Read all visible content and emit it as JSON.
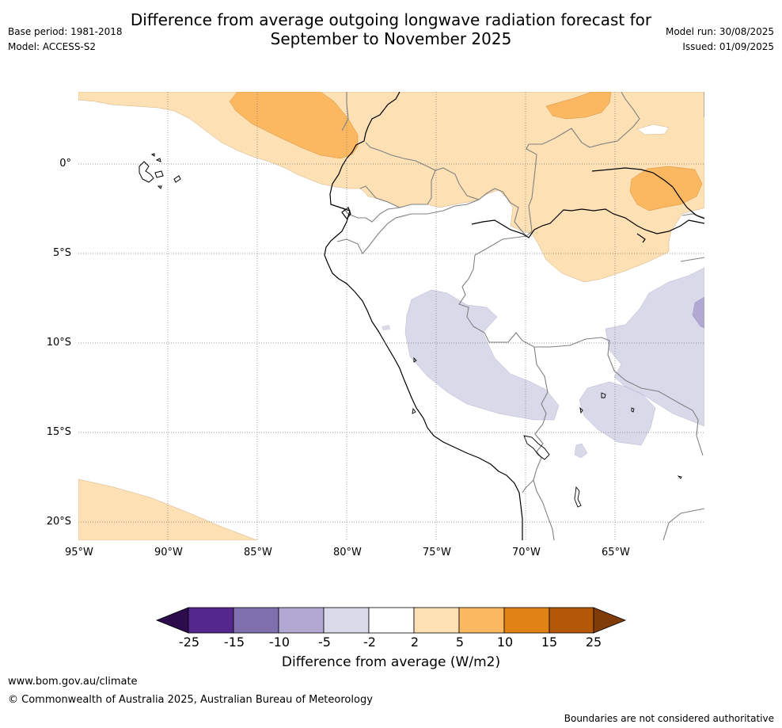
{
  "header": {
    "title_line1": "Difference from average outgoing longwave radiation forecast for",
    "title_line2": "September to November 2025",
    "base_period": "Base period: 1981-2018",
    "model": "Model: ACCESS-S2",
    "model_run": "Model run: 30/08/2025",
    "issued": "Issued: 01/09/2025"
  },
  "map": {
    "lon_labels": [
      "95°W",
      "90°W",
      "85°W",
      "80°W",
      "75°W",
      "70°W",
      "65°W"
    ],
    "lat_labels": [
      "0°",
      "5°S",
      "10°S",
      "15°S",
      "20°S"
    ],
    "lon_range": [
      -95,
      -60
    ],
    "lat_range": [
      -21,
      4
    ],
    "gridlines": "dotted"
  },
  "colorbar": {
    "title": "Difference from average (W/m2)",
    "tick_labels": [
      "-25",
      "-15",
      "-10",
      "-5",
      "-2",
      "2",
      "5",
      "10",
      "15",
      "25"
    ],
    "colors": [
      "#2d0c4e",
      "#54278f",
      "#7f70ad",
      "#b1a9d1",
      "#d9d9ea",
      "#ffffff",
      "#fde0b4",
      "#fbb861",
      "#e08214",
      "#b35806",
      "#7f3b08"
    ]
  },
  "footer": {
    "website": "www.bom.gov.au/climate",
    "copyright": "© Commonwealth of Australia 2025, Australian Bureau of Meteorology",
    "disclaimer": "Boundaries are not considered authoritative"
  }
}
